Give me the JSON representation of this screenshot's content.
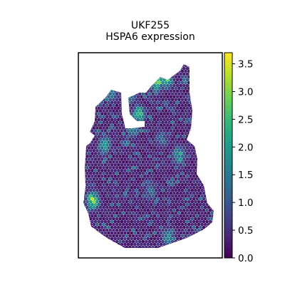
{
  "chart_data": {
    "type": "scatter",
    "title": "UKF255",
    "subtitle": "HSPA6 expression",
    "xlabel": "",
    "ylabel": "",
    "colormap": "viridis",
    "colorbar": {
      "min": 0.0,
      "max": 3.7,
      "ticks": [
        0.0,
        0.5,
        1.0,
        1.5,
        2.0,
        2.5,
        3.0,
        3.5
      ],
      "tick_labels": [
        "0.0",
        "0.5",
        "1.0",
        "1.5",
        "2.0",
        "2.5",
        "3.0",
        "3.5"
      ],
      "colors": [
        "#440154",
        "#482878",
        "#3e4989",
        "#31688e",
        "#26828e",
        "#1f9e89",
        "#35b779",
        "#6ece58",
        "#b5de2b",
        "#fde725"
      ]
    },
    "background_value": 0.15,
    "hotspots": [
      {
        "x": 0.42,
        "y": 0.12,
        "value": 3.7
      },
      {
        "x": 0.55,
        "y": 0.14,
        "value": 3.3
      },
      {
        "x": 0.61,
        "y": 0.13,
        "value": 3.0
      },
      {
        "x": 0.35,
        "y": 0.2,
        "value": 2.4
      },
      {
        "x": 0.42,
        "y": 0.3,
        "value": 2.8
      },
      {
        "x": 0.38,
        "y": 0.36,
        "value": 2.2
      },
      {
        "x": 0.22,
        "y": 0.2,
        "value": 1.8
      },
      {
        "x": 0.18,
        "y": 0.45,
        "value": 2.3
      },
      {
        "x": 0.7,
        "y": 0.5,
        "value": 2.4
      },
      {
        "x": 0.58,
        "y": 0.42,
        "value": 1.6
      },
      {
        "x": 0.5,
        "y": 0.68,
        "value": 1.5
      },
      {
        "x": 0.62,
        "y": 0.9,
        "value": 2.0
      },
      {
        "x": 0.1,
        "y": 0.72,
        "value": 3.4
      }
    ]
  }
}
